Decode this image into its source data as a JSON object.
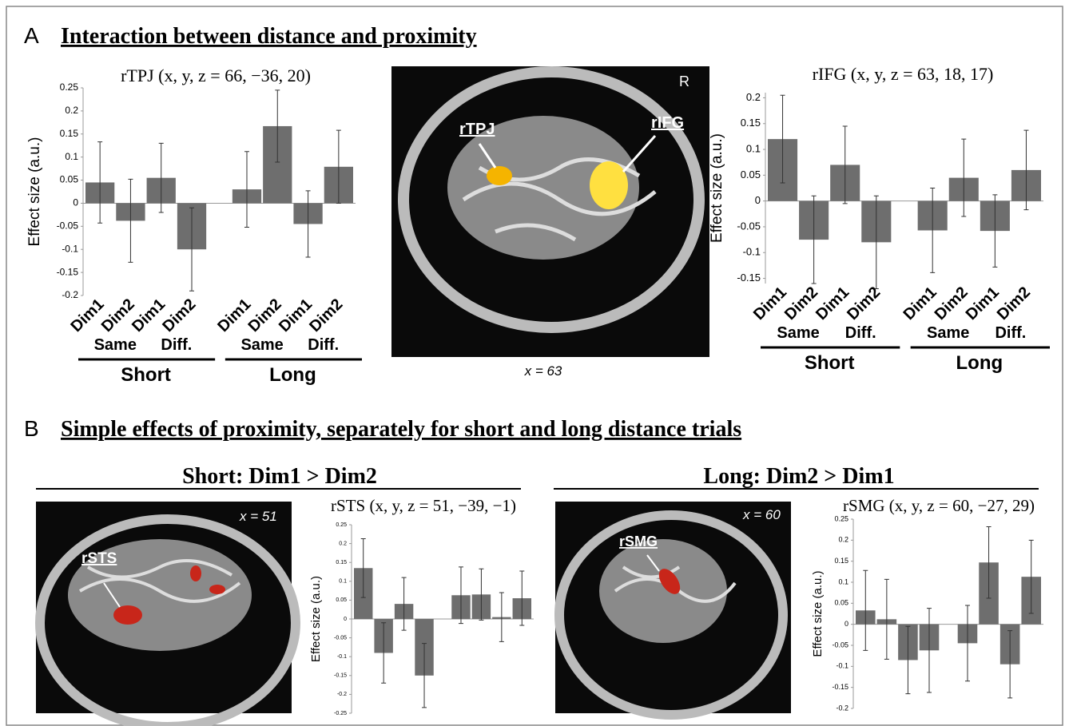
{
  "figure": {
    "panel_a": {
      "letter": "A",
      "title": "Interaction between distance and proximity"
    },
    "panel_b": {
      "letter": "B",
      "title": "Simple effects of proximity, separately for short and long distance trials",
      "left_heading": "Short: Dim1 > Dim2",
      "right_heading": "Long: Dim2 > Dim1"
    },
    "images": [
      {
        "labels": [
          "rTPJ",
          "rIFG",
          "R"
        ],
        "caption": "x = 63"
      },
      {
        "labels": [
          "rSTS",
          "x = 51"
        ]
      },
      {
        "labels": [
          "rSMG",
          "x = 60"
        ]
      }
    ]
  },
  "chart_data": [
    {
      "type": "bar",
      "title": "rTPJ (x, y, z = 66, −36, 20)",
      "y_label": "Effect size (a.u.)",
      "categories": [
        "Dim1",
        "Dim2",
        "Dim1",
        "Dim2",
        "Dim1",
        "Dim2",
        "Dim1",
        "Dim2"
      ],
      "groups": [
        {
          "name": "Short",
          "subgroups": [
            "Same",
            "Diff."
          ]
        },
        {
          "name": "Long",
          "subgroups": [
            "Same",
            "Diff."
          ]
        }
      ],
      "values": [
        0.045,
        -0.038,
        0.055,
        -0.1,
        0.03,
        0.167,
        -0.045,
        0.079
      ],
      "errors": [
        0.088,
        0.09,
        0.075,
        0.09,
        0.082,
        0.078,
        0.072,
        0.079
      ],
      "color": "#6e6e6e",
      "ylim": [
        -0.2,
        0.25
      ],
      "yticks": [
        0.25,
        0.2,
        0.15,
        0.1,
        0.05,
        0,
        -0.05,
        -0.1,
        -0.15,
        -0.2
      ]
    },
    {
      "type": "bar",
      "title": "rIFG (x, y, z = 63, 18, 17)",
      "y_label": "Effect size (a.u.)",
      "categories": [
        "Dim1",
        "Dim2",
        "Dim1",
        "Dim2",
        "Dim1",
        "Dim2",
        "Dim1",
        "Dim2"
      ],
      "groups": [
        {
          "name": "Short",
          "subgroups": [
            "Same",
            "Diff."
          ]
        },
        {
          "name": "Long",
          "subgroups": [
            "Same",
            "Diff."
          ]
        }
      ],
      "values": [
        0.12,
        -0.075,
        0.07,
        -0.08,
        -0.057,
        0.045,
        -0.058,
        0.06
      ],
      "errors": [
        0.085,
        0.085,
        0.075,
        0.09,
        0.082,
        0.075,
        0.07,
        0.077
      ],
      "color": "#6e6e6e",
      "ylim": [
        -0.16,
        0.21
      ],
      "yticks": [
        0.2,
        0.15,
        0.1,
        0.05,
        0,
        -0.05,
        -0.1,
        -0.15
      ]
    },
    {
      "type": "bar",
      "title": "rSTS (x, y, z = 51, −39, −1)",
      "y_label": "Effect size (a.u.)",
      "values": [
        0.135,
        -0.09,
        0.04,
        -0.15,
        0.063,
        0.065,
        0.005,
        0.055
      ],
      "errors": [
        0.078,
        0.08,
        0.07,
        0.085,
        0.075,
        0.068,
        0.065,
        0.072
      ],
      "color": "#6e6e6e",
      "ylim": [
        -0.25,
        0.25
      ],
      "yticks": [
        0.25,
        0.2,
        0.15,
        0.1,
        0.05,
        0,
        -0.05,
        -0.1,
        -0.15,
        -0.2,
        -0.25
      ]
    },
    {
      "type": "bar",
      "title": "rSMG (x, y, z = 60, −27, 29)",
      "y_label": "Effect size (a.u.)",
      "values": [
        0.033,
        0.012,
        -0.085,
        -0.062,
        -0.045,
        0.147,
        -0.095,
        0.113
      ],
      "errors": [
        0.095,
        0.095,
        0.08,
        0.1,
        0.09,
        0.085,
        0.08,
        0.087
      ],
      "color": "#6e6e6e",
      "ylim": [
        -0.2,
        0.25
      ],
      "yticks": [
        0.25,
        0.2,
        0.15,
        0.1,
        0.05,
        0,
        -0.05,
        -0.1,
        -0.15,
        -0.2
      ]
    }
  ]
}
